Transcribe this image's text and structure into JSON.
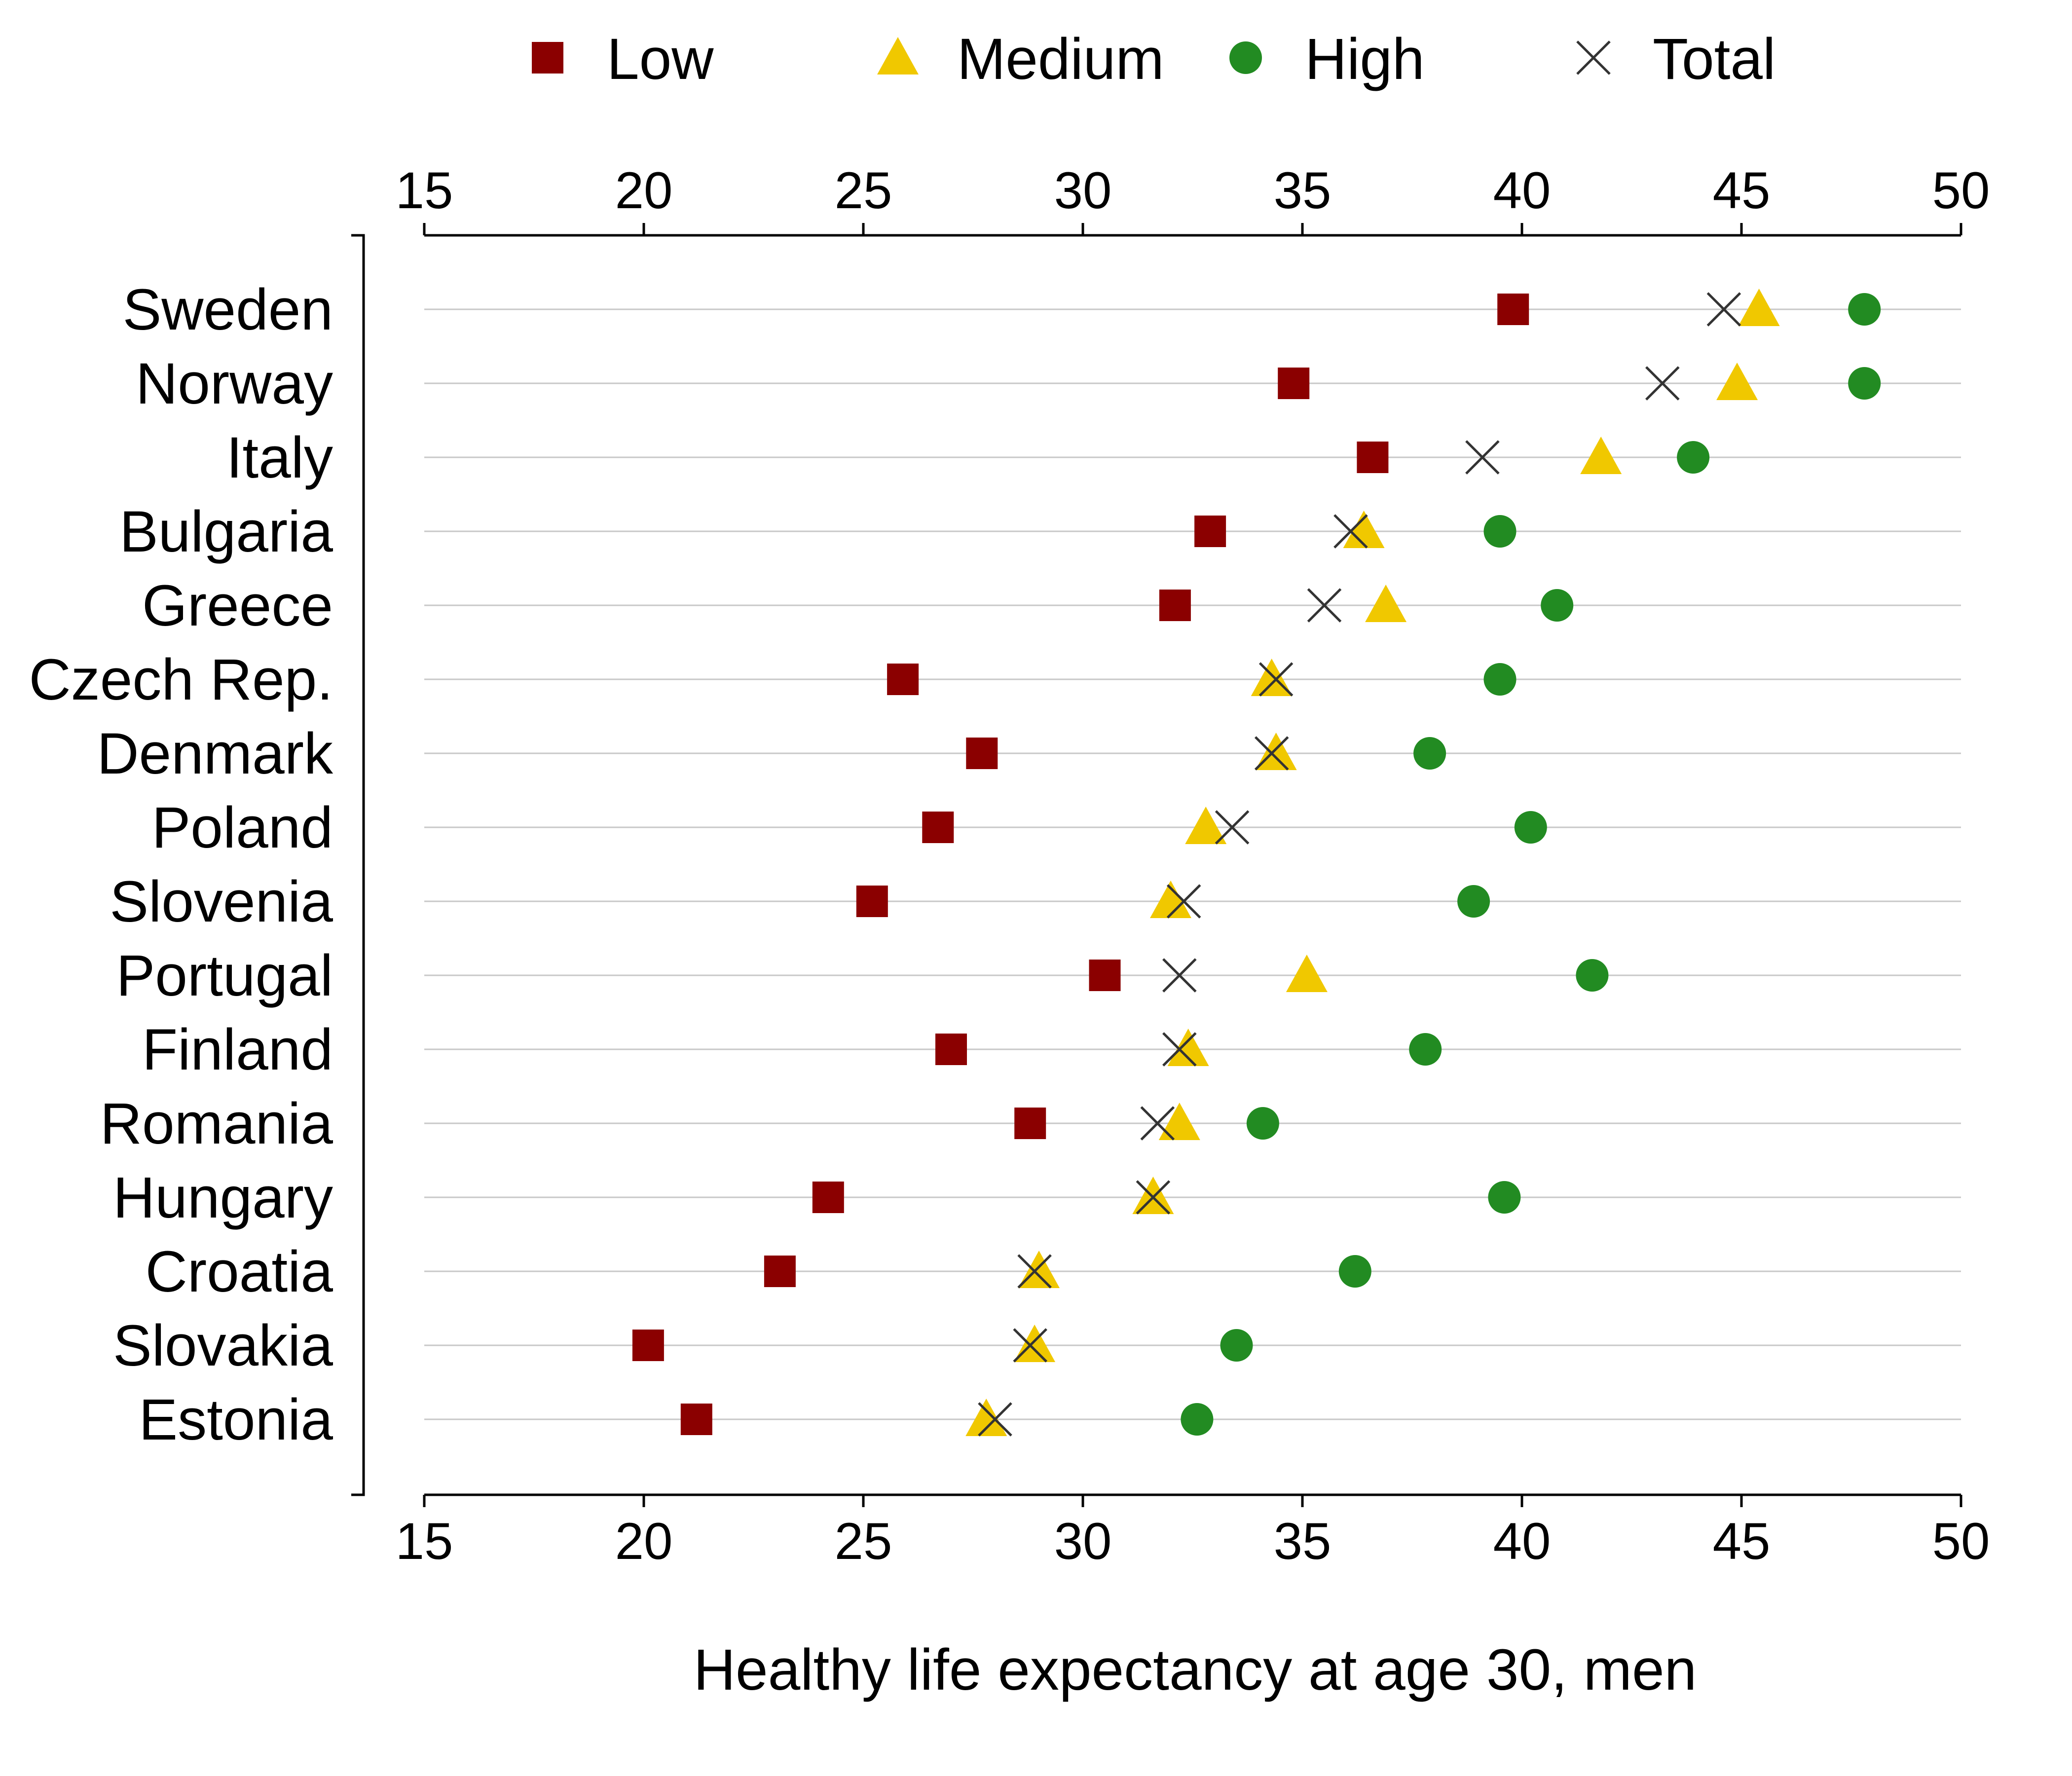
{
  "chart_data": {
    "type": "scatter",
    "orientation": "horizontal-dot-plot",
    "xlabel": "Healthy life expectancy at age 30, men",
    "xlim": [
      15,
      50
    ],
    "xticks": [
      15,
      20,
      25,
      30,
      35,
      40,
      45,
      50
    ],
    "x_axis_positions": [
      "top",
      "bottom"
    ],
    "grid": "horizontal lines per category",
    "legend_placement": "top",
    "categories": [
      "Sweden",
      "Norway",
      "Italy",
      "Bulgaria",
      "Greece",
      "Czech Rep.",
      "Denmark",
      "Poland",
      "Slovenia",
      "Portugal",
      "Finland",
      "Romania",
      "Hungary",
      "Croatia",
      "Slovakia",
      "Estonia"
    ],
    "series": [
      {
        "name": "Low",
        "marker": "square",
        "color": "#8b0000",
        "values": [
          39.8,
          34.8,
          36.6,
          32.9,
          32.1,
          25.9,
          27.7,
          26.7,
          25.2,
          30.5,
          27.0,
          28.8,
          24.2,
          23.1,
          20.1,
          21.2
        ]
      },
      {
        "name": "Medium",
        "marker": "triangle",
        "color": "#f0c800",
        "values": [
          45.4,
          44.9,
          41.8,
          36.4,
          36.9,
          34.3,
          34.4,
          32.8,
          32.0,
          35.1,
          32.4,
          32.2,
          31.6,
          29.0,
          28.9,
          27.8
        ]
      },
      {
        "name": "High",
        "marker": "circle",
        "color": "#228b22",
        "values": [
          47.8,
          47.8,
          43.9,
          39.5,
          40.8,
          39.5,
          37.9,
          40.2,
          38.9,
          41.6,
          37.8,
          34.1,
          39.6,
          36.2,
          33.5,
          32.6
        ]
      },
      {
        "name": "Total",
        "marker": "x",
        "color": "#333333",
        "values": [
          44.6,
          43.2,
          39.1,
          36.1,
          35.5,
          34.4,
          34.3,
          33.4,
          32.3,
          32.2,
          32.2,
          31.7,
          31.6,
          28.9,
          28.8,
          28.0
        ]
      }
    ]
  }
}
